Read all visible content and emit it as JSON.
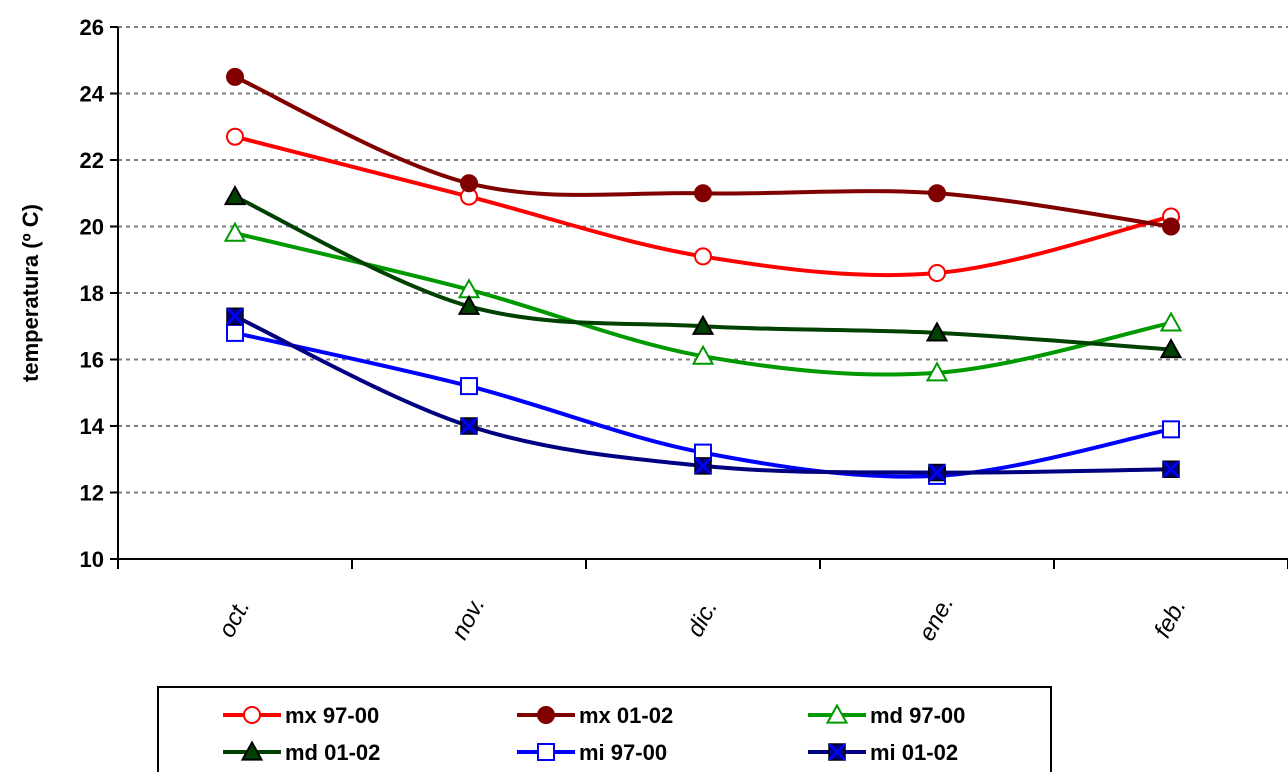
{
  "chart_data": {
    "type": "line",
    "ylabel": "temperatura (º C)",
    "xlabel": "",
    "ylim": [
      10,
      26
    ],
    "yticks": [
      10,
      12,
      14,
      16,
      18,
      20,
      22,
      24,
      26
    ],
    "grid": "horizontal dashed",
    "legend_position": "bottom",
    "categories": [
      "oct.",
      "nov.",
      "dic.",
      "ene.",
      "feb."
    ],
    "series": [
      {
        "name": "mx 97-00",
        "color": "#ff0000",
        "marker": "circle-open",
        "values": [
          22.7,
          20.9,
          19.1,
          18.6,
          20.3
        ]
      },
      {
        "name": "mx 01-02",
        "color": "#800000",
        "marker": "circle-filled",
        "values": [
          24.5,
          21.3,
          21.0,
          21.0,
          20.0
        ]
      },
      {
        "name": "md 97-00",
        "color": "#009900",
        "marker": "triangle-open",
        "values": [
          19.8,
          18.1,
          16.1,
          15.6,
          17.1
        ]
      },
      {
        "name": "md 01-02",
        "color": "#004000",
        "marker": "triangle-filled",
        "values": [
          20.9,
          17.6,
          17.0,
          16.8,
          16.3
        ]
      },
      {
        "name": "mi 97-00",
        "color": "#0000ff",
        "marker": "square-open",
        "values": [
          16.8,
          15.2,
          13.2,
          12.5,
          13.9
        ]
      },
      {
        "name": "mi 01-02",
        "color": "#000080",
        "marker": "square-x",
        "values": [
          17.3,
          14.0,
          12.8,
          12.6,
          12.7
        ]
      }
    ]
  }
}
